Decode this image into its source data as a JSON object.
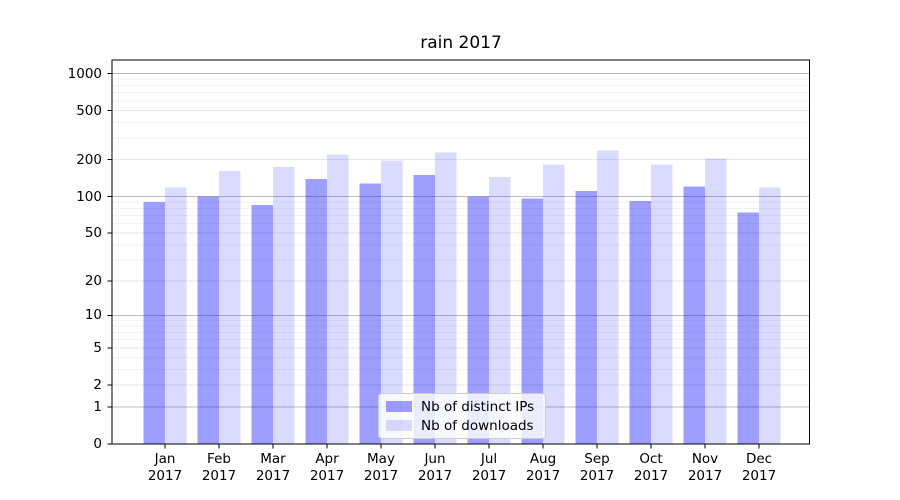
{
  "chart_data": {
    "type": "bar",
    "title": "rain 2017",
    "categories": [
      "Jan",
      "Feb",
      "Mar",
      "Apr",
      "May",
      "Jun",
      "Jul",
      "Aug",
      "Sep",
      "Oct",
      "Nov",
      "Dec"
    ],
    "category_subline": "2017",
    "series": [
      {
        "name": "Nb of distinct IPs",
        "color": "#0000ff",
        "alpha": 0.38,
        "values": [
          90,
          100,
          85,
          139,
          128,
          150,
          100,
          96,
          111,
          92,
          121,
          74
        ]
      },
      {
        "name": "Nb of downloads",
        "color": "#0000ff",
        "alpha": 0.14,
        "values": [
          118,
          161,
          175,
          220,
          197,
          228,
          144,
          182,
          238,
          182,
          204,
          118
        ]
      }
    ],
    "xlabel": "",
    "ylabel": "",
    "yscale": "log1p",
    "yticks": [
      0,
      1,
      2,
      5,
      10,
      20,
      50,
      100,
      200,
      500,
      1000
    ],
    "ylim": [
      0,
      1288
    ],
    "grid": true,
    "legend_position": "lower-center",
    "background_color": "#ffffff"
  }
}
